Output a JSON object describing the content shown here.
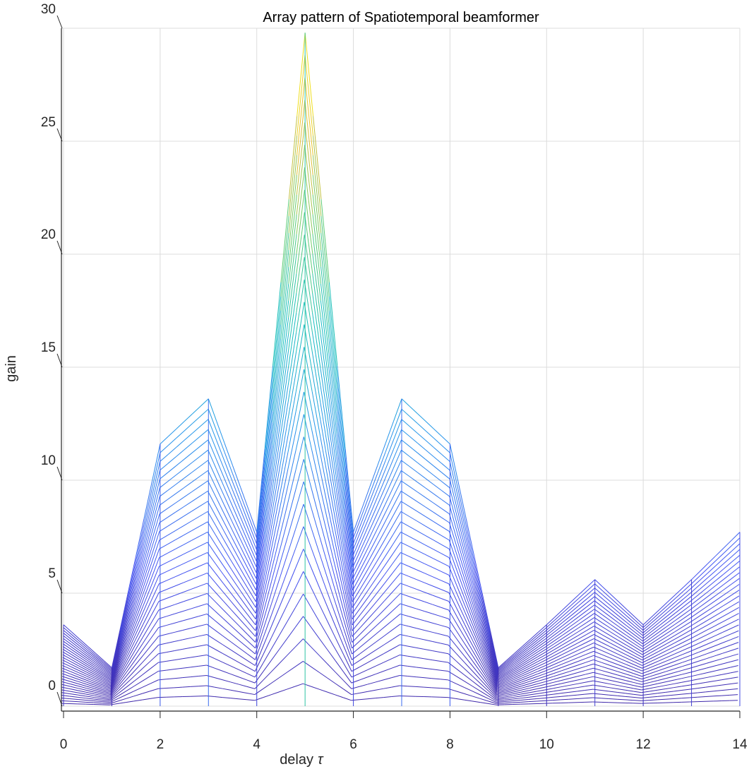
{
  "chart_data": {
    "type": "line",
    "title": "Array pattern of Spatiotemporal beamformer",
    "xlabel": "delay",
    "xlabel_symbol": "τ",
    "ylabel": "gain",
    "x_ticks": [
      "0",
      "2",
      "4",
      "6",
      "8",
      "10",
      "12",
      "14"
    ],
    "y_ticks": [
      "0",
      "5",
      "10",
      "15",
      "20",
      "25",
      "30"
    ],
    "xlim": [
      0,
      14
    ],
    "ylim": [
      0,
      30
    ],
    "grid": true,
    "colormap": "parula",
    "x": [
      0,
      1,
      2,
      3,
      4,
      5,
      6,
      7,
      8,
      9,
      10,
      11,
      12,
      13,
      14
    ],
    "num_series": 30,
    "series_description": "30 line series forming a 3-D style ribbon; each series is the base profile scaled by (k/30) and shifted left/down slightly",
    "top_envelope": [
      3.6,
      1.7,
      11.6,
      13.6,
      7.7,
      29.8,
      7.7,
      13.6,
      11.6,
      1.7,
      3.6,
      5.6,
      3.6,
      5.6,
      7.7
    ]
  }
}
